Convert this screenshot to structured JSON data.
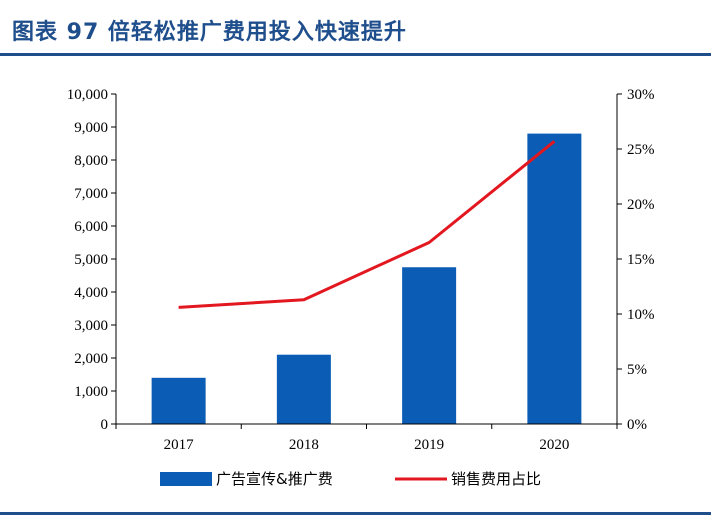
{
  "figure": {
    "title": "图表 97   倍轻松推广费用投入快速提升"
  },
  "colors": {
    "title": "#1F4E8C",
    "bar": "#0B5CB4",
    "line": "#E3171F",
    "axis": "#000000"
  },
  "chart_data": {
    "type": "bar",
    "categories": [
      "2017",
      "2018",
      "2019",
      "2020"
    ],
    "series": [
      {
        "name": "广告宣传&推广费",
        "type": "bar",
        "axis": "left",
        "values": [
          1400,
          2100,
          4750,
          8800
        ]
      },
      {
        "name": "销售费用占比",
        "type": "line",
        "axis": "right",
        "values": [
          0.106,
          0.113,
          0.165,
          0.257
        ]
      }
    ],
    "ylim": [
      0,
      10000
    ],
    "yticks": [
      "0",
      "1,000",
      "2,000",
      "3,000",
      "4,000",
      "5,000",
      "6,000",
      "7,000",
      "8,000",
      "9,000",
      "10,000"
    ],
    "y2lim": [
      0,
      0.3
    ],
    "y2ticks": [
      "0%",
      "5%",
      "10%",
      "15%",
      "20%",
      "25%",
      "30%"
    ],
    "legend_position": "bottom",
    "grid": false
  }
}
